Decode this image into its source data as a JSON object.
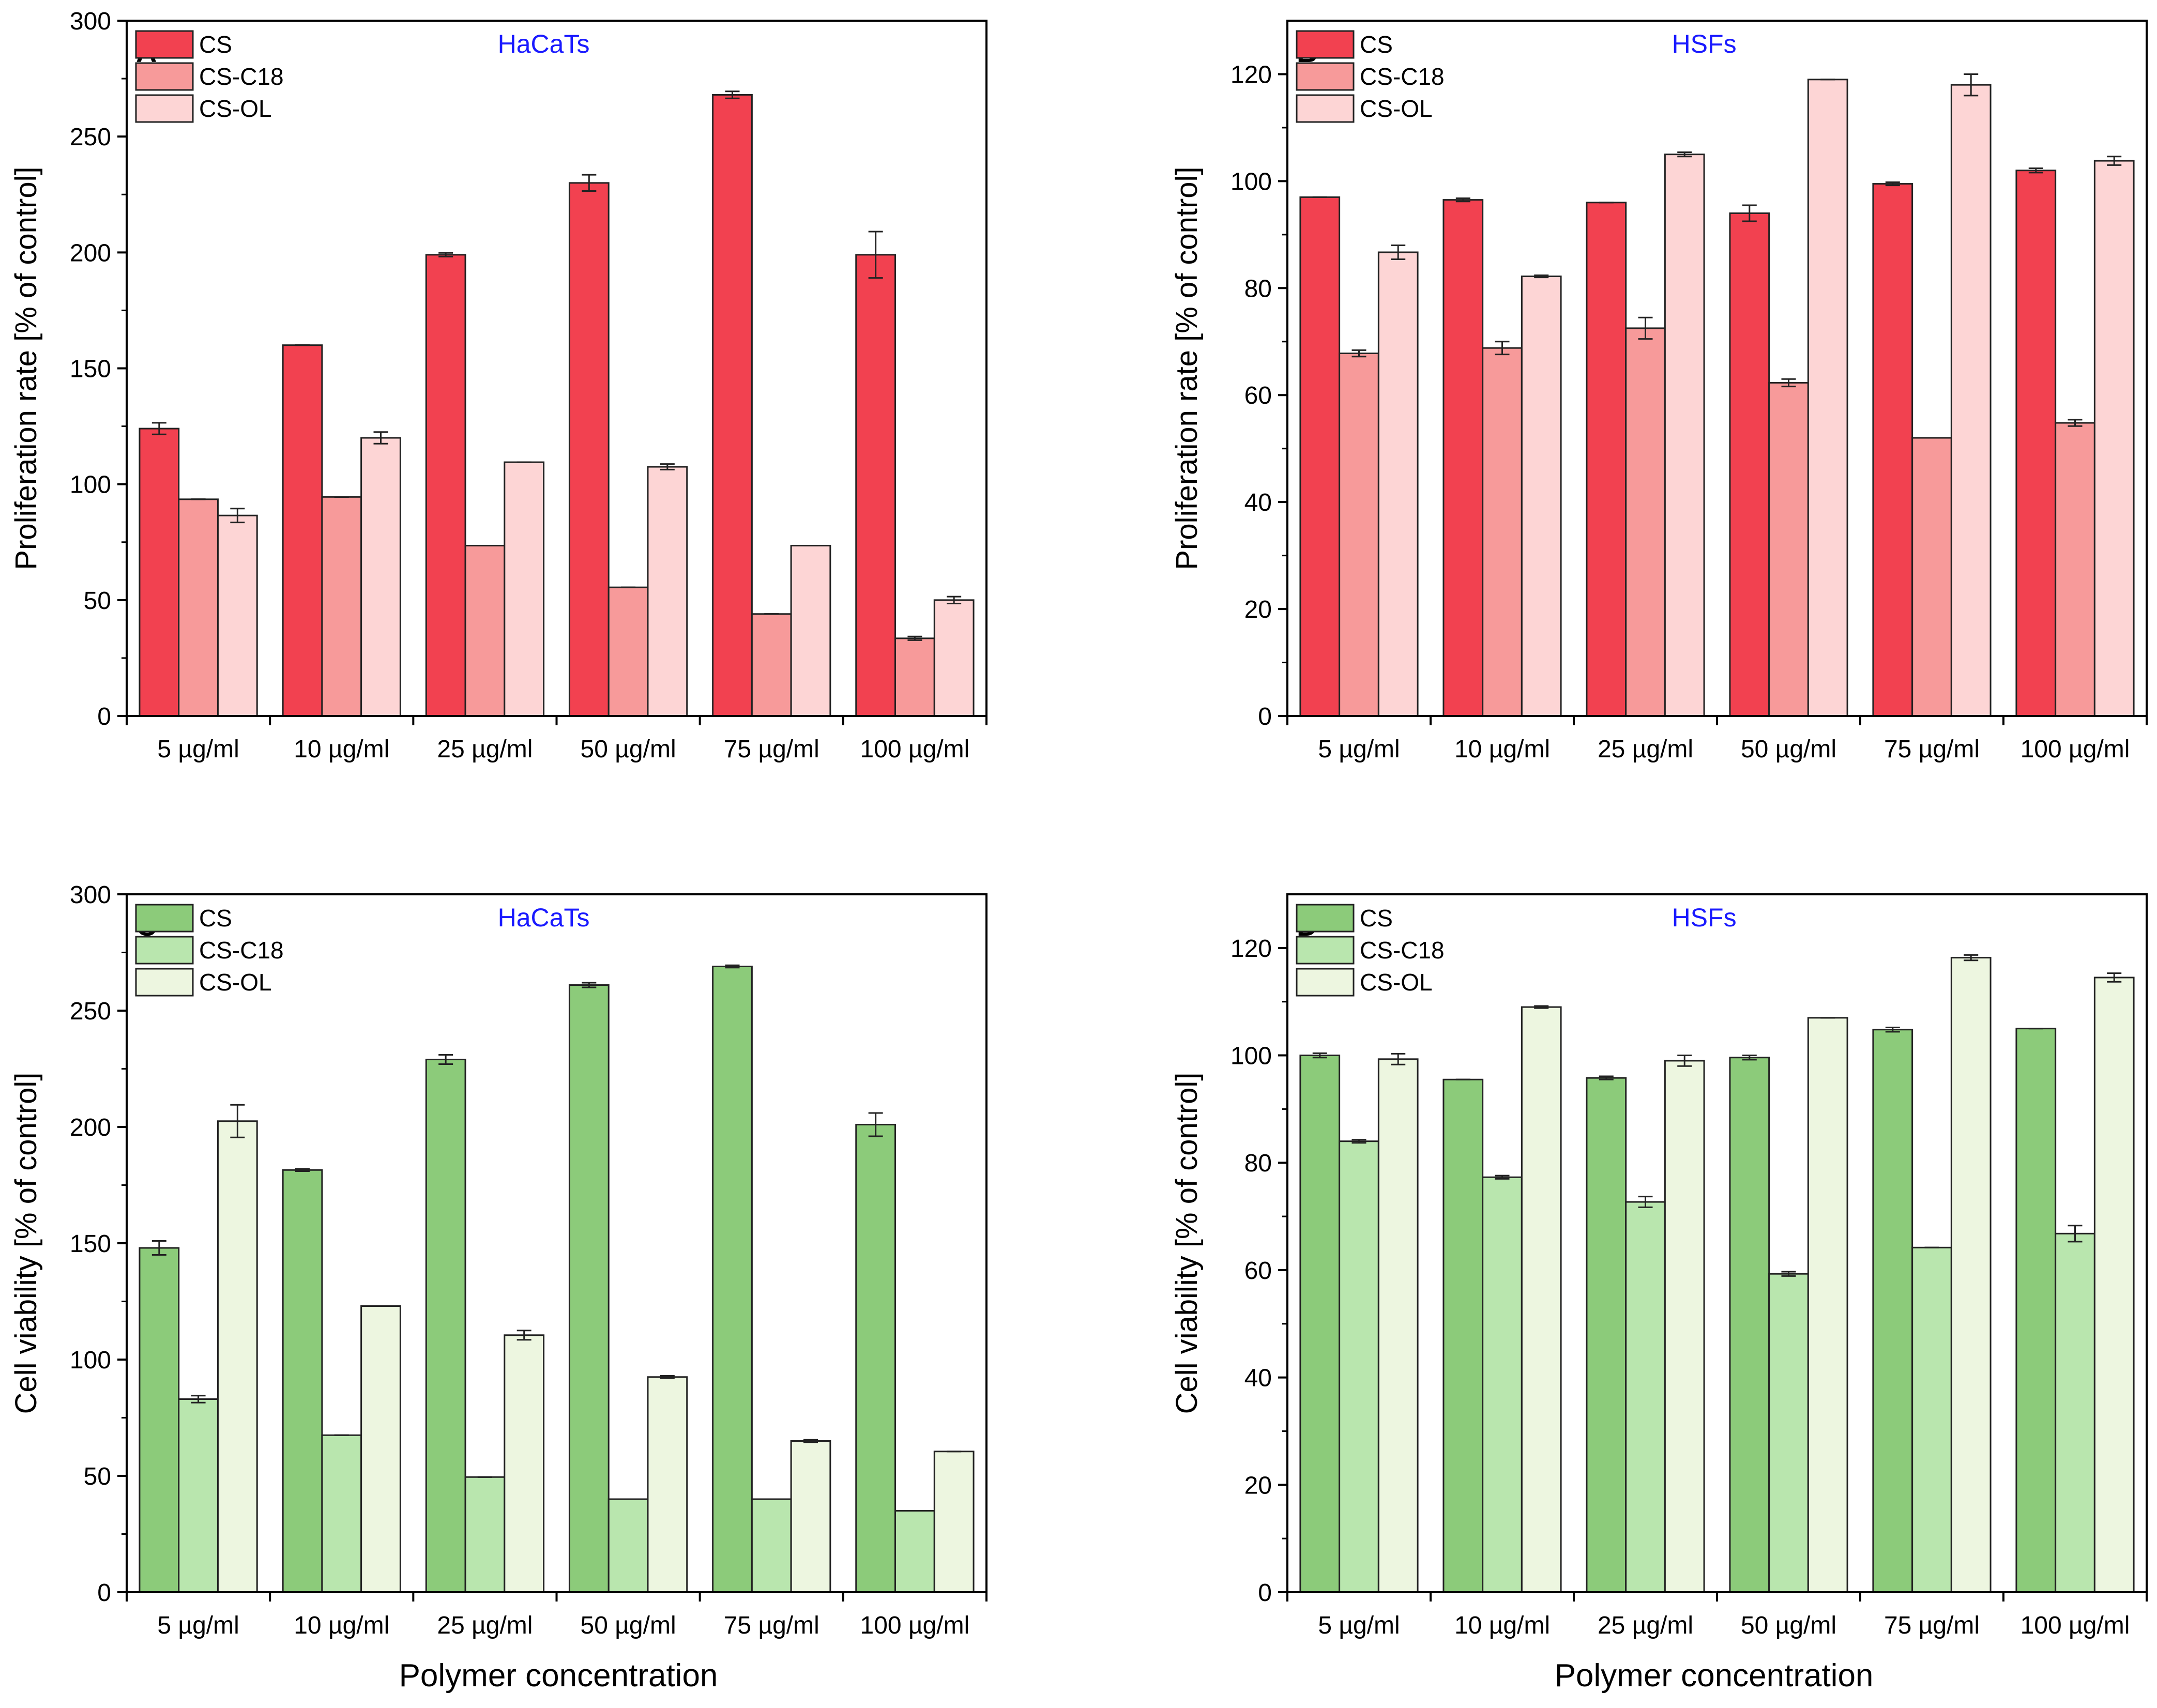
{
  "figure": {
    "x_axis_title": "Polymer concentration"
  },
  "chart_data": [
    {
      "panel": "A",
      "type": "bar",
      "cell_line": "HaCaTs",
      "title_color": "#1a1aff",
      "ylabel": "Proliferation rate [% of control]",
      "xlabel": "",
      "ylim": [
        0,
        300
      ],
      "yticks": [
        0,
        50,
        100,
        150,
        200,
        250,
        300
      ],
      "categories": [
        "5 µg/ml",
        "10 µg/ml",
        "25 µg/ml",
        "50 µg/ml",
        "75 µg/ml",
        "100 µg/ml"
      ],
      "legend_position": "top-left",
      "series": [
        {
          "name": "CS",
          "color": "#f24150",
          "values": [
            124,
            160,
            199,
            230,
            268,
            199
          ],
          "errors": [
            2.5,
            0,
            0.8,
            3.5,
            1.5,
            10
          ]
        },
        {
          "name": "CS-C18",
          "color": "#f79a9a",
          "values": [
            93.5,
            94.5,
            73.5,
            55.5,
            44,
            33.5
          ],
          "errors": [
            0,
            0,
            0,
            0,
            0,
            0.8
          ]
        },
        {
          "name": "CS-OL",
          "color": "#fdd5d5",
          "values": [
            86.5,
            120,
            109.5,
            107.5,
            73.5,
            50
          ],
          "errors": [
            3,
            2.5,
            0,
            1.2,
            0,
            1.5
          ]
        }
      ]
    },
    {
      "panel": "B",
      "type": "bar",
      "cell_line": "HSFs",
      "title_color": "#1a1aff",
      "ylabel": "Proliferation rate [% of control]",
      "xlabel": "",
      "ylim": [
        0,
        130
      ],
      "yticks": [
        0,
        20,
        40,
        60,
        80,
        100,
        120
      ],
      "categories": [
        "5 µg/ml",
        "10 µg/ml",
        "25 µg/ml",
        "50 µg/ml",
        "75 µg/ml",
        "100 µg/ml"
      ],
      "legend_position": "top-left",
      "series": [
        {
          "name": "CS",
          "color": "#f24150",
          "values": [
            97,
            96.5,
            96,
            94,
            99.5,
            102
          ],
          "errors": [
            0,
            0.3,
            0,
            1.5,
            0.3,
            0.4
          ]
        },
        {
          "name": "CS-C18",
          "color": "#f79a9a",
          "values": [
            67.8,
            68.8,
            72.5,
            62.3,
            52,
            54.8
          ],
          "errors": [
            0.6,
            1.2,
            2,
            0.7,
            0,
            0.6
          ]
        },
        {
          "name": "CS-OL",
          "color": "#fdd5d5",
          "values": [
            86.7,
            82.2,
            105,
            119,
            118,
            103.8
          ],
          "errors": [
            1.3,
            0.2,
            0.4,
            0,
            2,
            0.8
          ]
        }
      ]
    },
    {
      "panel": "C",
      "type": "bar",
      "cell_line": "HaCaTs",
      "title_color": "#1a1aff",
      "ylabel": "Cell viability [% of control]",
      "xlabel": "Polymer concentration",
      "ylim": [
        0,
        300
      ],
      "yticks": [
        0,
        50,
        100,
        150,
        200,
        250,
        300
      ],
      "categories": [
        "5 µg/ml",
        "10 µg/ml",
        "25 µg/ml",
        "50 µg/ml",
        "75 µg/ml",
        "100 µg/ml"
      ],
      "legend_position": "top-left",
      "series": [
        {
          "name": "CS",
          "color": "#8ccb7a",
          "values": [
            148,
            181.5,
            229,
            261,
            269,
            201
          ],
          "errors": [
            3,
            0.5,
            2,
            1,
            0.5,
            5
          ]
        },
        {
          "name": "CS-C18",
          "color": "#b9e6ae",
          "values": [
            83,
            67.5,
            49.5,
            40,
            40,
            35
          ],
          "errors": [
            1.5,
            0,
            0,
            0,
            0,
            0
          ]
        },
        {
          "name": "CS-OL",
          "color": "#edf6e0",
          "values": [
            202.5,
            123,
            110.5,
            92.5,
            65,
            60.5
          ],
          "errors": [
            7,
            0,
            2,
            0.5,
            0.5,
            0
          ]
        }
      ]
    },
    {
      "panel": "D",
      "type": "bar",
      "cell_line": "HSFs",
      "title_color": "#1a1aff",
      "ylabel": "Cell viability [% of control]",
      "xlabel": "Polymer concentration",
      "ylim": [
        0,
        130
      ],
      "yticks": [
        0,
        20,
        40,
        60,
        80,
        100,
        120
      ],
      "categories": [
        "5 µg/ml",
        "10 µg/ml",
        "25 µg/ml",
        "50 µg/ml",
        "75 µg/ml",
        "100 µg/ml"
      ],
      "legend_position": "top-left",
      "series": [
        {
          "name": "CS",
          "color": "#8ccb7a",
          "values": [
            100,
            95.5,
            95.8,
            99.6,
            104.8,
            105
          ],
          "errors": [
            0.4,
            0,
            0.3,
            0.4,
            0.4,
            0
          ]
        },
        {
          "name": "CS-C18",
          "color": "#b9e6ae",
          "values": [
            84,
            77.3,
            72.7,
            59.3,
            64.2,
            66.8
          ],
          "errors": [
            0.3,
            0.3,
            1,
            0.4,
            0,
            1.5
          ]
        },
        {
          "name": "CS-OL",
          "color": "#edf6e0",
          "values": [
            99.3,
            109,
            99,
            107,
            118.2,
            114.5
          ],
          "errors": [
            1,
            0.2,
            1,
            0,
            0.5,
            0.8
          ]
        }
      ]
    }
  ]
}
